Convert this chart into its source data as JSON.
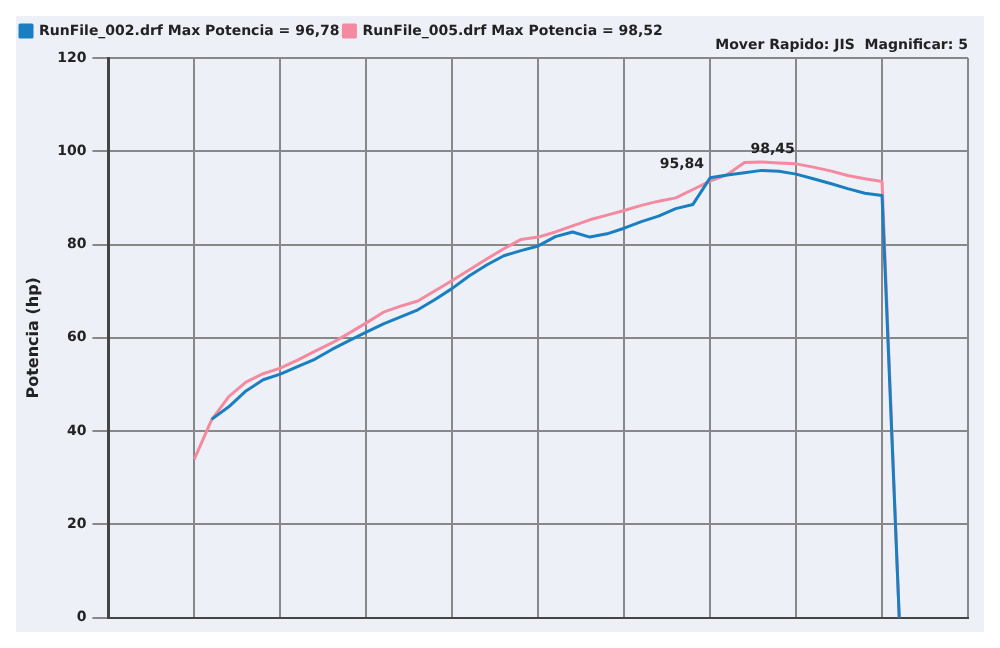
{
  "chart_data": {
    "type": "line",
    "ylabel": "Potencia (hp)",
    "categories": [
      null,
      null,
      null,
      null,
      null,
      null,
      null,
      null,
      null,
      null,
      null,
      null,
      null,
      null,
      null,
      null,
      null,
      null,
      null,
      null,
      null,
      null,
      null,
      null,
      null,
      null,
      null,
      null,
      null,
      null,
      null,
      null,
      null,
      null,
      null,
      null,
      null,
      null,
      null,
      null,
      null,
      null,
      null,
      null,
      null,
      null,
      null,
      null,
      null,
      null,
      null
    ],
    "ylim": [
      0,
      120
    ],
    "yticks": [
      0,
      20,
      40,
      60,
      80,
      100,
      120
    ],
    "tick_labels": "y",
    "grid": true,
    "legend": "top left",
    "marker": "none",
    "line_style": "solid",
    "series": [
      {
        "name": "RunFile_002.drf Max Potencia = 96,78",
        "color": "#1a7fc0",
        "values": [
          null,
          null,
          null,
          null,
          null,
          null,
          42.5,
          45.2,
          48.6,
          51.0,
          52.2,
          53.8,
          55.4,
          57.5,
          59.4,
          61.2,
          63.0,
          64.5,
          66.0,
          68.2,
          70.6,
          73.3,
          75.6,
          77.6,
          78.7,
          79.7,
          81.7,
          82.7,
          81.6,
          82.3,
          83.5,
          84.9,
          86.1,
          87.7,
          88.6,
          94.3,
          94.9,
          95.4,
          95.9,
          95.7,
          95.1,
          94.1,
          93.1,
          92.0,
          91.0,
          90.5,
          0,
          null,
          null,
          null,
          null
        ]
      },
      {
        "name": "RunFile_005.drf Max Potencia = 98,52",
        "color": "#f48aa0",
        "values": [
          null,
          null,
          null,
          null,
          null,
          34.0,
          42.4,
          47.4,
          50.5,
          52.3,
          53.5,
          55.2,
          57.1,
          58.9,
          61.0,
          63.2,
          65.5,
          66.8,
          67.9,
          70.1,
          72.3,
          74.6,
          76.9,
          79.1,
          81.1,
          81.6,
          82.7,
          84.0,
          85.3,
          86.3,
          87.3,
          88.4,
          89.3,
          90.0,
          91.8,
          93.6,
          95.0,
          97.6,
          97.7,
          97.5,
          97.3,
          96.6,
          95.8,
          94.8,
          94.1,
          93.5,
          0,
          null,
          null,
          null,
          null
        ]
      }
    ],
    "annotations": [
      "95,84",
      "98,45",
      "Mover Rapido: JIS  Magnificar: 5"
    ]
  }
}
